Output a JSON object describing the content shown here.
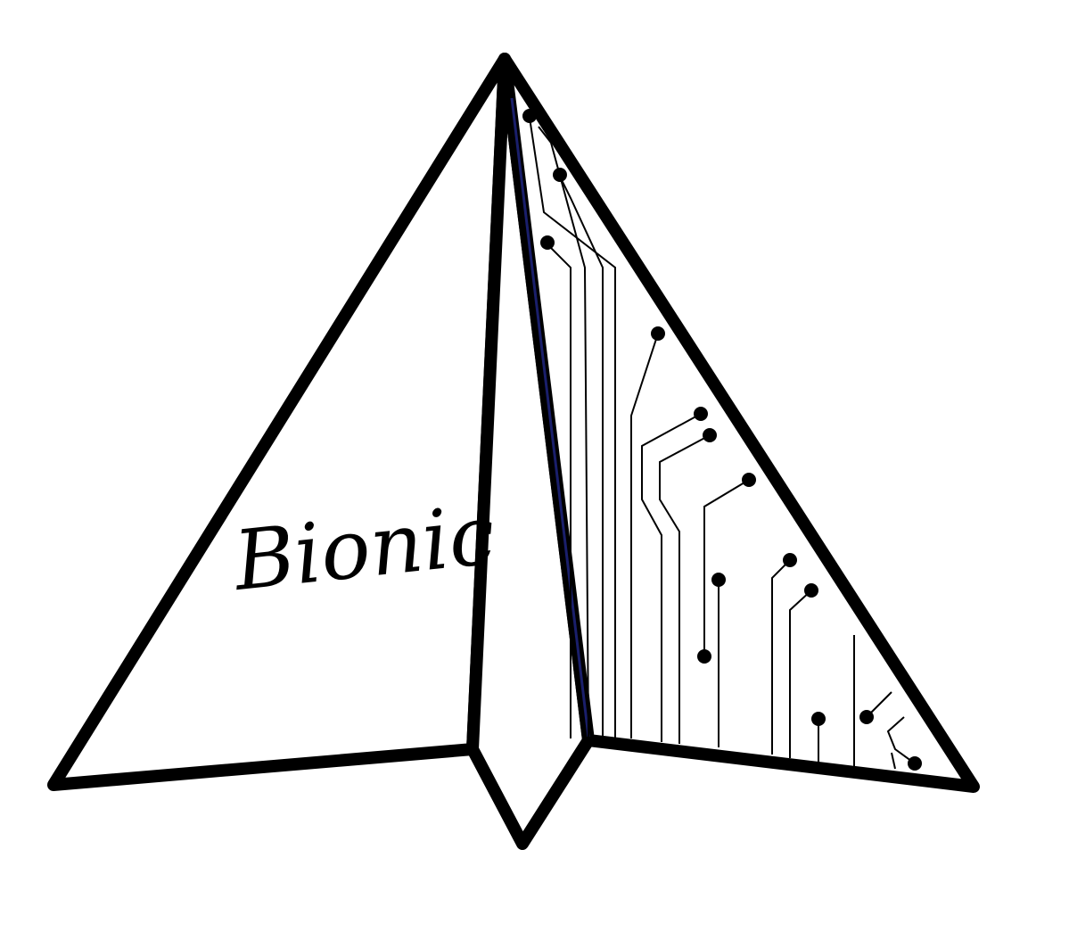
{
  "logo": {
    "brand_text": "Bionic",
    "icon_name": "paper-plane-circuit-icon",
    "colors": {
      "background": "#ffffff",
      "outline": "#000000",
      "fold_accent": "#1a1f6b"
    }
  }
}
